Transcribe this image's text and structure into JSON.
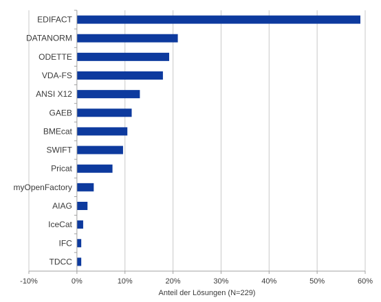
{
  "chart_data": {
    "type": "bar",
    "orientation": "horizontal",
    "categories": [
      "EDIFACT",
      "DATANORM",
      "ODETTE",
      "VDA-FS",
      "ANSI X12",
      "GAEB",
      "BMEcat",
      "SWIFT",
      "Pricat",
      "myOpenFactory",
      "AIAG",
      "IceCat",
      "IFC",
      "TDCC"
    ],
    "values": [
      59.0,
      21.0,
      19.2,
      17.9,
      13.1,
      11.4,
      10.5,
      9.6,
      7.4,
      3.5,
      2.2,
      1.3,
      0.9,
      0.9
    ],
    "xlabel": "Anteil der Lösungen (N=229)",
    "xlim": [
      -10,
      60
    ],
    "xticks": [
      -10,
      0,
      10,
      20,
      30,
      40,
      50,
      60
    ],
    "xtick_labels": [
      "-10%",
      "0%",
      "10%",
      "20%",
      "30%",
      "40%",
      "50%",
      "60%"
    ],
    "grid": "vertical",
    "legend": "none",
    "colors": {
      "bar": "#0d3a9e",
      "grid": "#c8c8c8",
      "axis": "#a0a0a0"
    }
  }
}
